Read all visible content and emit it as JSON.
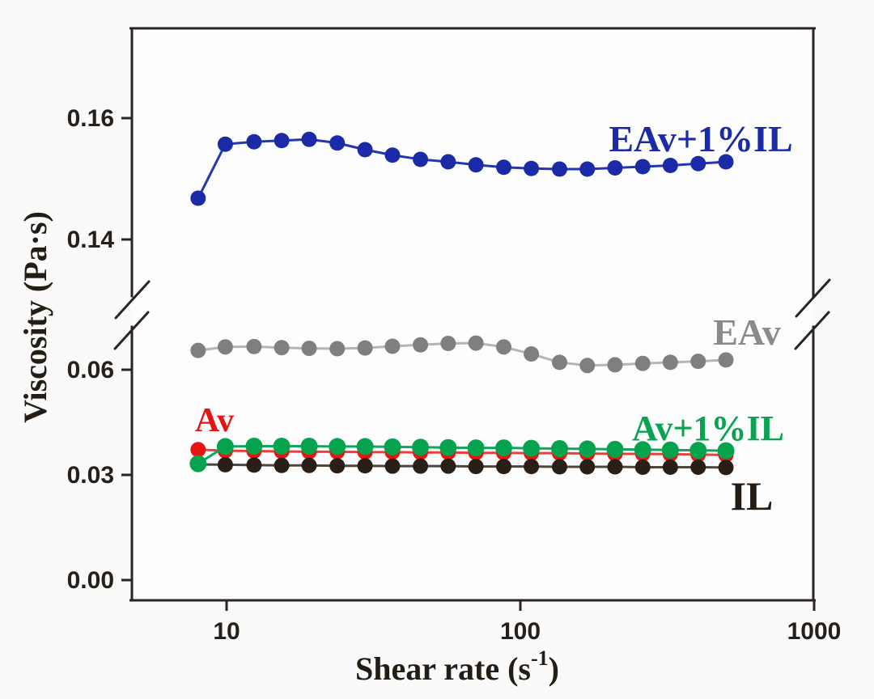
{
  "figure": {
    "background": "#fafafb",
    "plot_fill": "#fdfdfe",
    "frame_color": "#2b2420",
    "tick_text_color": "#272019",
    "title_text_color": "#231d16"
  },
  "chart_data": {
    "type": "line",
    "x_scale": "log",
    "grid": false,
    "legend_position": "inline-labels",
    "xlabel_parts": {
      "main": "Shear rate (s",
      "sup": "-1",
      "close": ")"
    },
    "ylabel": "Viscosity (Pa·s)",
    "x_range": [
      4.7,
      1000
    ],
    "x_ticks": [
      {
        "v": 10,
        "label": "10"
      },
      {
        "v": 100,
        "label": "100"
      },
      {
        "v": 1000,
        "label": "1000"
      }
    ],
    "y_axis_break": {
      "between": [
        0.07,
        0.139
      ],
      "note": "broken y-axis with slash marks on both sides"
    },
    "y_ticks": [
      {
        "v": 0.16,
        "label": "0.16"
      },
      {
        "v": 0.14,
        "label": "0.14"
      },
      {
        "v": 0.06,
        "label": "0.06"
      },
      {
        "v": 0.03,
        "label": "0.03"
      },
      {
        "v": 0.0,
        "label": "0.00"
      }
    ],
    "x": [
      8.0,
      9.9,
      12.4,
      15.4,
      19.1,
      23.8,
      29.6,
      36.7,
      45.7,
      56.8,
      70.6,
      87.8,
      109,
      136,
      169,
      210,
      261,
      324,
      403,
      501
    ],
    "series": [
      {
        "name": "EAv",
        "dot_color": "#7f7f7f",
        "line_color": "#b5b5b5",
        "values": [
          0.0655,
          0.0665,
          0.0666,
          0.0663,
          0.0661,
          0.066,
          0.0662,
          0.0667,
          0.0671,
          0.0675,
          0.0676,
          0.0665,
          0.0645,
          0.0621,
          0.0612,
          0.0614,
          0.0618,
          0.0621,
          0.0624,
          0.0628
        ],
        "label": {
          "text": "EAv",
          "x": 923,
          "y": 426,
          "size": 46,
          "color": "#8a8a8a",
          "anchor": "middle"
        }
      },
      {
        "name": "Av",
        "dot_color": "#e71410",
        "line_color": "#e8413d",
        "values": [
          0.0372,
          0.0369,
          0.0368,
          0.0367,
          0.0366,
          0.0366,
          0.0365,
          0.0365,
          0.0364,
          0.0364,
          0.0363,
          0.0363,
          0.0362,
          0.0362,
          0.0361,
          0.036,
          0.036,
          0.0359,
          0.0358,
          0.0357
        ],
        "label": {
          "text": "Av",
          "x": 265,
          "y": 533,
          "size": 42,
          "color": "#e71410",
          "anchor": "middle"
        }
      },
      {
        "name": "IL",
        "dot_color": "#2a1f16",
        "line_color": "#4e463e",
        "values": [
          0.033,
          0.0329,
          0.0328,
          0.0327,
          0.0327,
          0.0326,
          0.0326,
          0.0325,
          0.0325,
          0.0325,
          0.0324,
          0.0324,
          0.0324,
          0.0323,
          0.0323,
          0.0323,
          0.0322,
          0.0322,
          0.0322,
          0.0321
        ],
        "label": {
          "text": "IL",
          "x": 929,
          "y": 630,
          "size": 50,
          "color": "#231a12",
          "anchor": "middle"
        }
      },
      {
        "name": "Av+1%IL",
        "dot_color": "#06a34e",
        "line_color": "#12a55f",
        "values": [
          0.0332,
          0.0381,
          0.0382,
          0.0382,
          0.0382,
          0.0381,
          0.0381,
          0.038,
          0.0379,
          0.0378,
          0.0377,
          0.0377,
          0.0376,
          0.0375,
          0.0374,
          0.0373,
          0.0372,
          0.0371,
          0.037,
          0.0369
        ],
        "label": {
          "text": "Av+1%IL",
          "x": 875,
          "y": 544,
          "size": 44,
          "color": "#0aa352",
          "anchor": "middle"
        }
      },
      {
        "name": "EAv+1%IL",
        "dot_color": "#1b2aa6",
        "line_color": "#2437b0",
        "values": [
          0.1468,
          0.1557,
          0.1561,
          0.1563,
          0.1565,
          0.1559,
          0.1548,
          0.1539,
          0.1532,
          0.1528,
          0.1523,
          0.1519,
          0.1517,
          0.1516,
          0.1516,
          0.1518,
          0.152,
          0.1522,
          0.1525,
          0.1528
        ],
        "label": {
          "text": "EAv+1%IL",
          "x": 866,
          "y": 187,
          "size": 46,
          "color": "#1b2aa6",
          "anchor": "middle"
        }
      }
    ]
  }
}
